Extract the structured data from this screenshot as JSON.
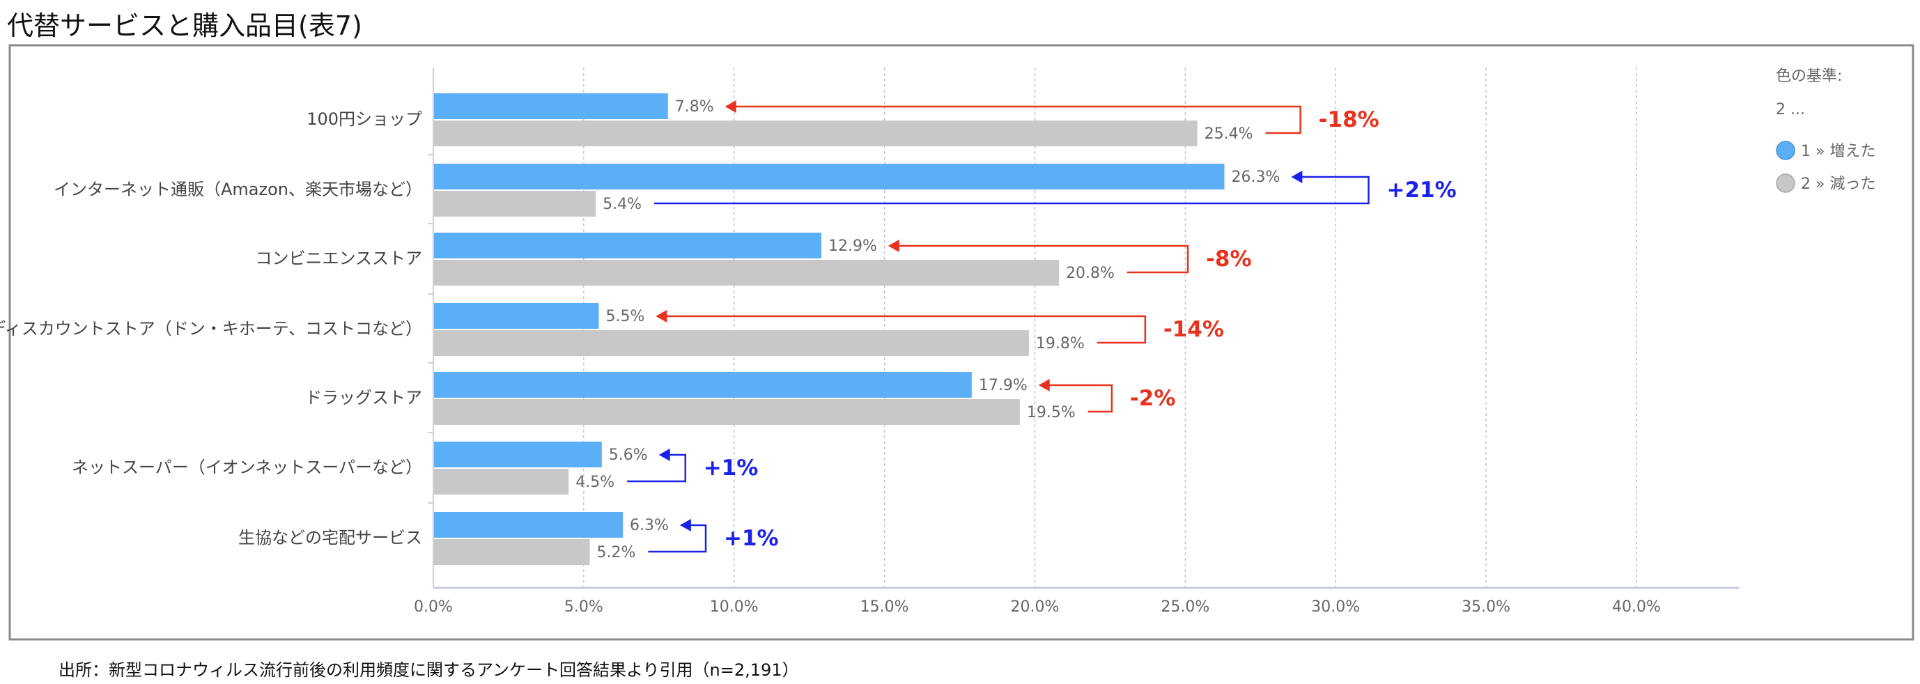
{
  "title": "代替サービスと購入品目(表7)",
  "footer": "出所：新型コロナウィルス流行前後の利用頻度に関するアンケート回答結果より引用（n=2,191）",
  "legend": {
    "heading": "色の基準:",
    "subheading": "2 ...",
    "items": [
      {
        "label": "1 » 増えた",
        "color": "#5aaff7"
      },
      {
        "label": "2 » 減った",
        "color": "#c8c8c8"
      }
    ]
  },
  "colors": {
    "increase_annotation": "#1a22e8",
    "decrease_annotation": "#e8321e"
  },
  "chart_data": {
    "type": "bar",
    "orientation": "horizontal",
    "categories": [
      "100円ショップ",
      "インターネット通販（Amazon、楽天市場など）",
      "コンビニエンスストア",
      "ディスカウントストア（ドン・キホーテ、コストコなど）",
      "ドラッグストア",
      "ネットスーパー（イオンネットスーパーなど）",
      "生協などの宅配サービス"
    ],
    "series": [
      {
        "name": "1 » 増えた",
        "color": "#5aaff7",
        "values": [
          7.8,
          26.3,
          12.9,
          5.5,
          17.9,
          5.6,
          6.3
        ],
        "labels": [
          "7.8%",
          "26.3%",
          "12.9%",
          "5.5%",
          "17.9%",
          "5.6%",
          "6.3%"
        ]
      },
      {
        "name": "2 » 減った",
        "color": "#c8c8c8",
        "values": [
          25.4,
          5.4,
          20.8,
          19.8,
          19.5,
          4.5,
          5.2
        ],
        "labels": [
          "25.4%",
          "5.4%",
          "20.8%",
          "19.8%",
          "19.5%",
          "4.5%",
          "5.2%"
        ]
      }
    ],
    "annotations": [
      "-18%",
      "+21%",
      "-8%",
      "-14%",
      "-2%",
      "+1%",
      "+1%"
    ],
    "xlim": [
      0,
      43.5
    ],
    "xticks": [
      "0.0%",
      "5.0%",
      "10.0%",
      "15.0%",
      "20.0%",
      "25.0%",
      "30.0%",
      "35.0%",
      "40.0%"
    ],
    "xtick_values": [
      0,
      5,
      10,
      15,
      20,
      25,
      30,
      35,
      40
    ],
    "grid": "vertical dashed",
    "legend_position": "right"
  }
}
